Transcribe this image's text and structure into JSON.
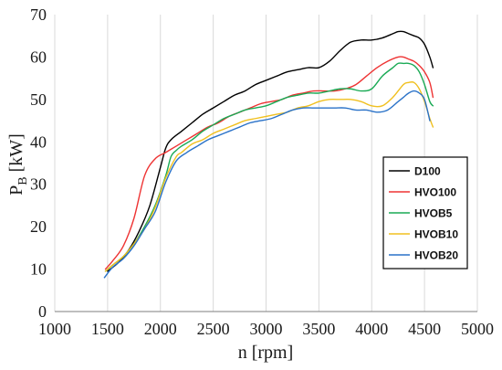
{
  "chart_data": {
    "type": "line",
    "title": "",
    "xlabel": "n [rpm]",
    "ylabel": {
      "main": "P",
      "sub": "B",
      "unit": " [kW]"
    },
    "xlim": [
      1000,
      5000
    ],
    "ylim": [
      0,
      70
    ],
    "xticks": [
      1000,
      1500,
      2000,
      2500,
      3000,
      3500,
      4000,
      4500,
      5000
    ],
    "yticks": [
      0,
      10,
      20,
      30,
      40,
      50,
      60,
      70
    ],
    "grid": {
      "x": true,
      "y": false
    },
    "legend": "right",
    "series": [
      {
        "name": "D100",
        "color": "#000000",
        "x": [
          1500,
          1600,
          1700,
          1800,
          1900,
          2000,
          2050,
          2100,
          2200,
          2300,
          2400,
          2500,
          2600,
          2700,
          2800,
          2900,
          3000,
          3100,
          3200,
          3300,
          3400,
          3500,
          3600,
          3700,
          3800,
          3900,
          4000,
          4100,
          4200,
          4250,
          4300,
          4350,
          4400,
          4450,
          4500,
          4550,
          4580
        ],
        "values": [
          9.5,
          11.5,
          14.5,
          19,
          25,
          34,
          38.5,
          40.5,
          42.5,
          44.5,
          46.5,
          48,
          49.5,
          51,
          52,
          53.5,
          54.5,
          55.5,
          56.5,
          57,
          57.5,
          57.5,
          59,
          61.5,
          63.5,
          64,
          64,
          64.5,
          65.5,
          66,
          66,
          65.5,
          65,
          64.5,
          63,
          60,
          57.5
        ]
      },
      {
        "name": "HVO100",
        "color": "#ee3333",
        "x": [
          1480,
          1550,
          1650,
          1750,
          1850,
          1950,
          2050,
          2150,
          2250,
          2350,
          2450,
          2550,
          2650,
          2750,
          2850,
          2950,
          3050,
          3150,
          3250,
          3350,
          3450,
          3550,
          3650,
          3750,
          3850,
          3950,
          4050,
          4150,
          4250,
          4300,
          4350,
          4400,
          4450,
          4500,
          4550,
          4580
        ],
        "values": [
          10,
          12,
          15.5,
          22,
          32,
          36,
          37.5,
          39,
          40.5,
          42,
          43.5,
          44.5,
          46,
          47,
          48,
          49,
          49.5,
          50,
          51,
          51.5,
          52,
          52,
          52,
          52.5,
          53.5,
          55.5,
          57.5,
          59,
          60,
          60,
          59.5,
          59,
          58,
          56.5,
          54,
          50.5
        ]
      },
      {
        "name": "HVOB5",
        "color": "#1aaa55",
        "x": [
          1480,
          1550,
          1650,
          1750,
          1850,
          1950,
          2050,
          2100,
          2150,
          2200,
          2300,
          2400,
          2500,
          2600,
          2700,
          2800,
          2900,
          3000,
          3100,
          3200,
          3300,
          3400,
          3500,
          3600,
          3700,
          3800,
          3900,
          4000,
          4100,
          4200,
          4250,
          4300,
          4350,
          4400,
          4450,
          4500,
          4550,
          4580
        ],
        "values": [
          9.5,
          11,
          13,
          16,
          20,
          25,
          32,
          36.5,
          38,
          39,
          40.5,
          42.5,
          44,
          45.5,
          46.5,
          47.5,
          48,
          48.5,
          49.5,
          50.5,
          51,
          51.5,
          51.5,
          52,
          52.5,
          52.5,
          52,
          52.5,
          55.5,
          57.5,
          58.5,
          58.5,
          58.5,
          58,
          56.5,
          53.5,
          49.5,
          48.5
        ]
      },
      {
        "name": "HVOB10",
        "color": "#f0c020",
        "x": [
          1480,
          1550,
          1650,
          1750,
          1850,
          1950,
          2050,
          2150,
          2200,
          2300,
          2400,
          2500,
          2600,
          2700,
          2800,
          2900,
          3000,
          3100,
          3200,
          3300,
          3400,
          3500,
          3600,
          3700,
          3800,
          3900,
          4000,
          4100,
          4200,
          4300,
          4350,
          4400,
          4450,
          4500,
          4550,
          4580
        ],
        "values": [
          9.5,
          11,
          13,
          16,
          19.5,
          24.5,
          31.5,
          36.5,
          37.5,
          39.5,
          40.5,
          42,
          43,
          44,
          45,
          45.5,
          46,
          46.5,
          47,
          48,
          48.5,
          49.5,
          50,
          50,
          50,
          49.5,
          48.5,
          48.5,
          50.5,
          53.5,
          54,
          54,
          52.5,
          49.5,
          45.5,
          43.5
        ]
      },
      {
        "name": "HVOB20",
        "color": "#2a72c8",
        "x": [
          1470,
          1550,
          1650,
          1750,
          1850,
          1950,
          2050,
          2150,
          2250,
          2350,
          2450,
          2550,
          2650,
          2750,
          2850,
          2950,
          3050,
          3150,
          3250,
          3350,
          3450,
          3550,
          3650,
          3750,
          3850,
          3950,
          4050,
          4150,
          4250,
          4300,
          4350,
          4400,
          4450,
          4500,
          4550
        ],
        "values": [
          8,
          10.5,
          12.5,
          15.5,
          19.5,
          23.5,
          30.5,
          35.5,
          37.5,
          39,
          40.5,
          41.5,
          42.5,
          43.5,
          44.5,
          45,
          45.5,
          46.5,
          47.5,
          48,
          48,
          48,
          48,
          48,
          47.5,
          47.5,
          47,
          47.5,
          49.5,
          50.5,
          51.5,
          52,
          51.5,
          50,
          45
        ]
      }
    ]
  }
}
